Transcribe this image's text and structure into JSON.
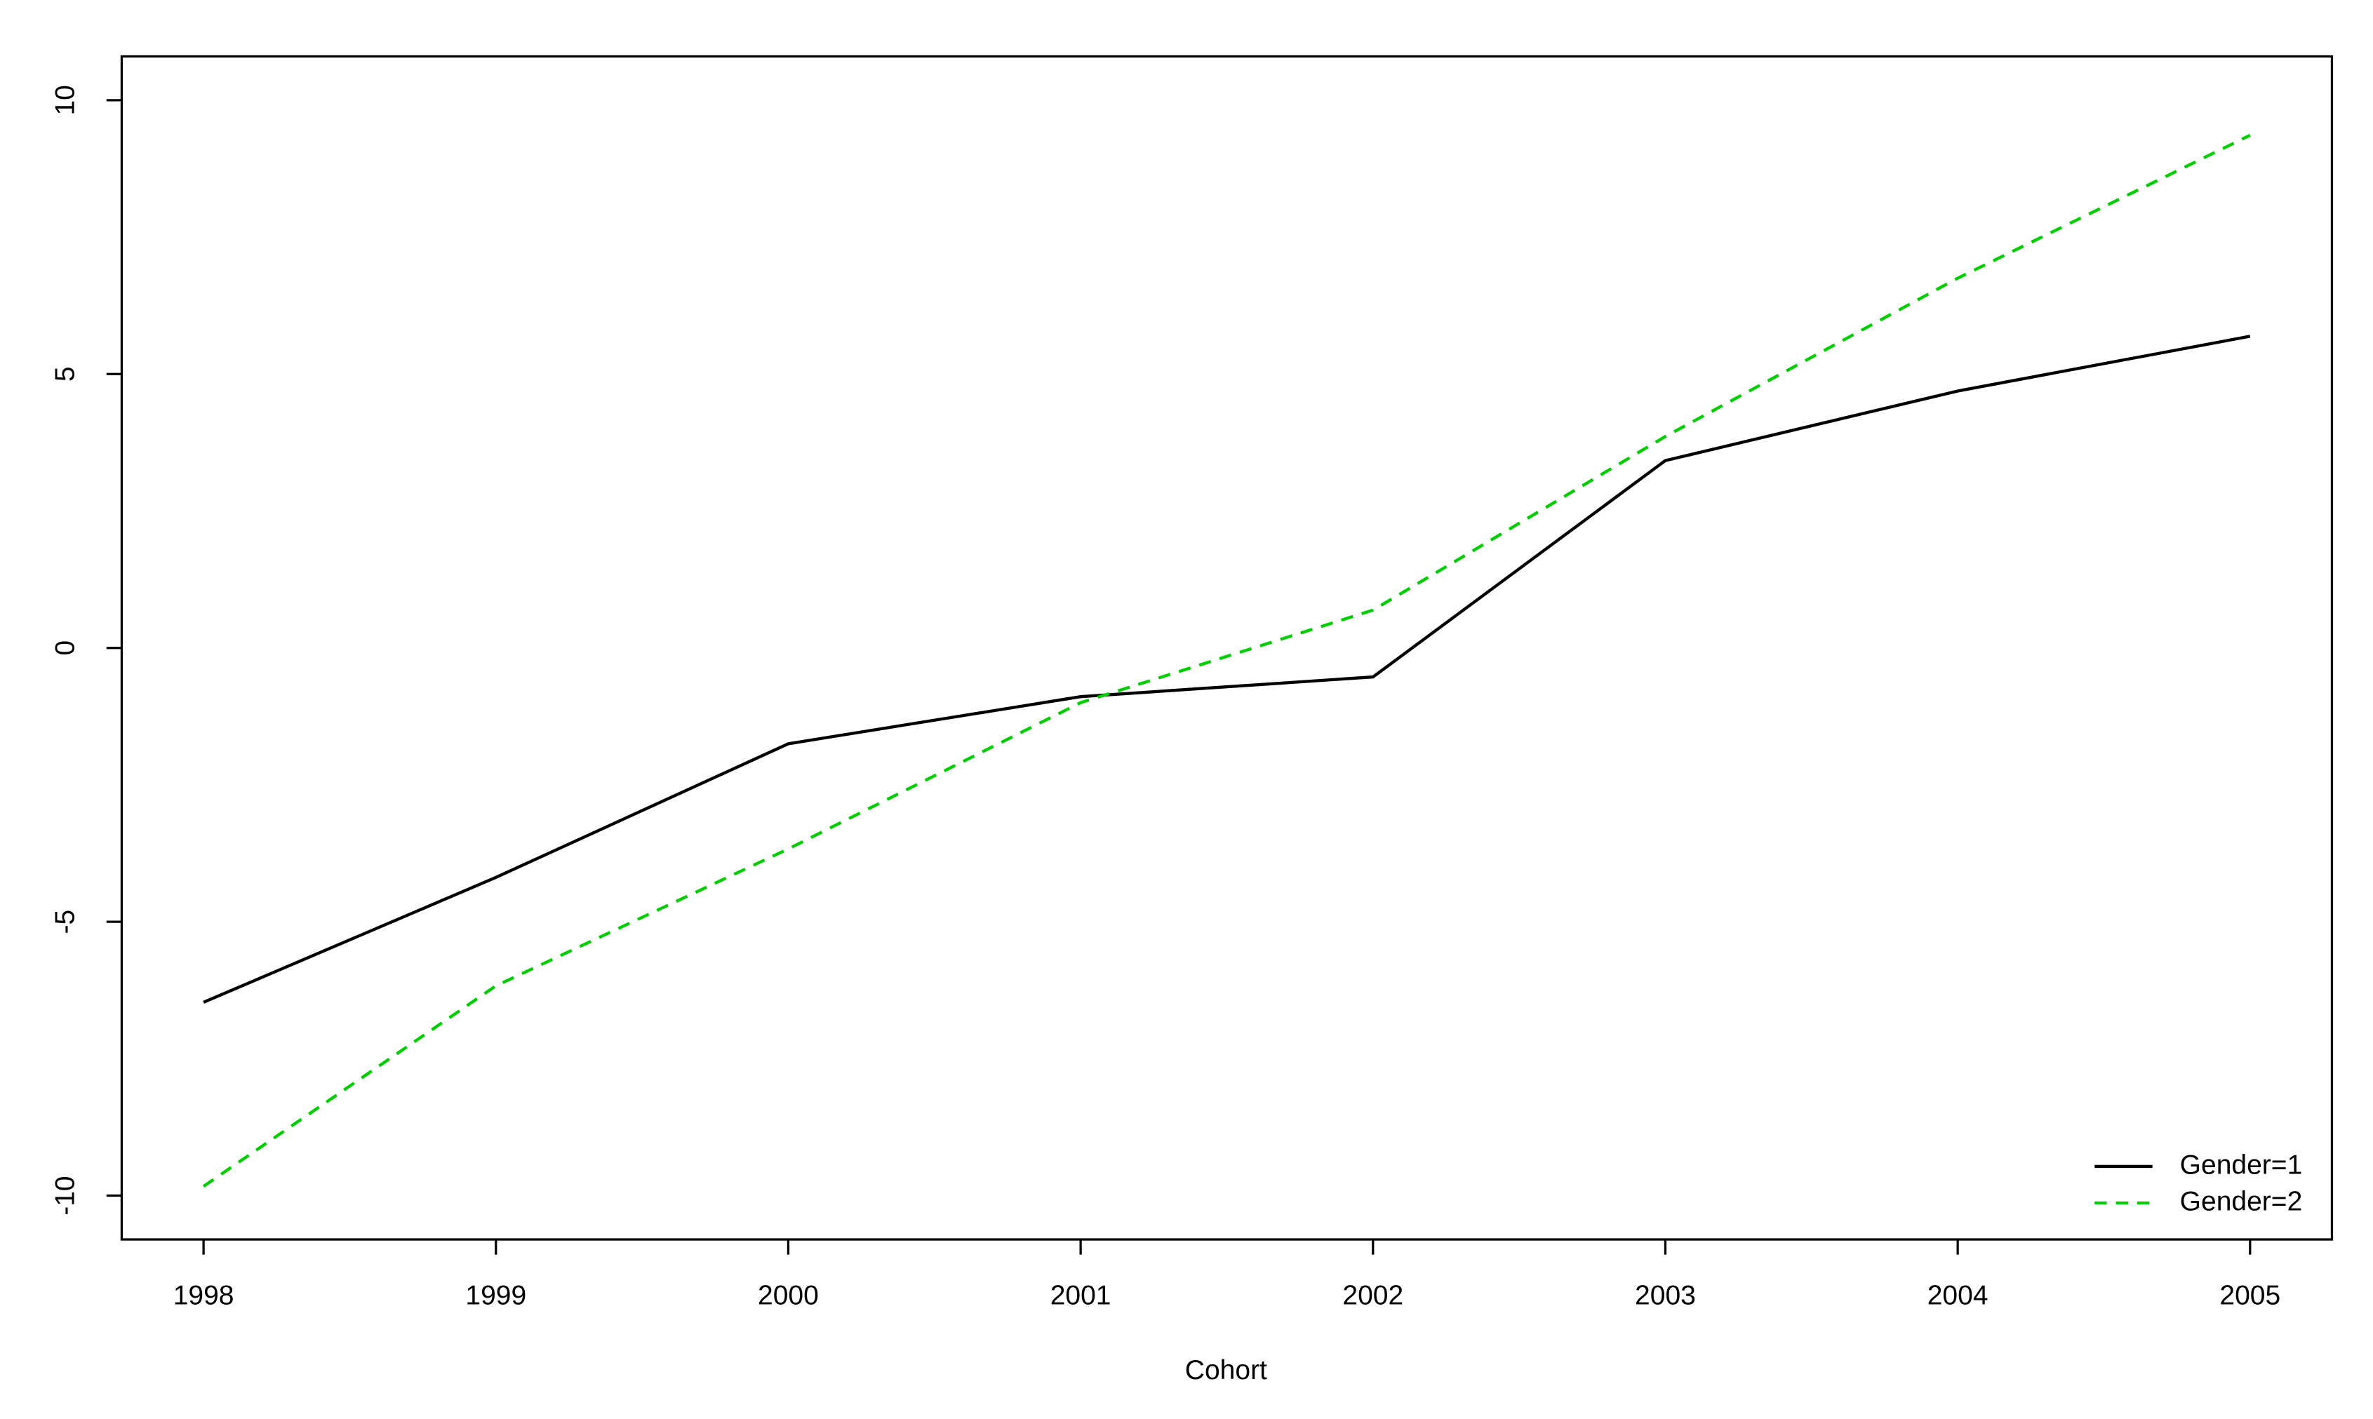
{
  "chart_data": {
    "type": "line",
    "xlabel": "Cohort",
    "x": [
      1998,
      1999,
      2000,
      2001,
      2002,
      2003,
      2004,
      2005
    ],
    "series": [
      {
        "name": "Gender=1",
        "color": "#000000",
        "linestyle": "solid",
        "values": [
          -6.47,
          -4.19,
          -1.75,
          -0.89,
          -0.53,
          3.42,
          4.69,
          5.69
        ]
      },
      {
        "name": "Gender=2",
        "color": "#00cd00",
        "linestyle": "dashed",
        "values": [
          -9.83,
          -6.17,
          -3.67,
          -1.0,
          0.69,
          3.86,
          6.75,
          9.36
        ]
      }
    ],
    "xlim": [
      1997.72,
      2005.28
    ],
    "xticks": [
      1998,
      1999,
      2000,
      2001,
      2002,
      2003,
      2004,
      2005
    ],
    "ylim": [
      -10.8,
      10.8
    ],
    "yticks": [
      -10,
      -5,
      0,
      5,
      10
    ],
    "grid": false,
    "legend": "bottom-right"
  }
}
